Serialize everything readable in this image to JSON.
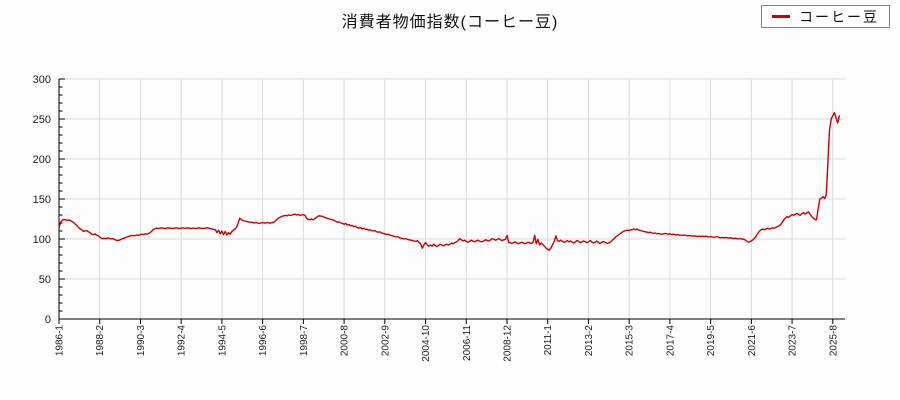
{
  "page": {
    "background": "#fdfdfd",
    "colors": {
      "line": "#cc0000",
      "grid": "#d9d9d9",
      "axis": "#000000",
      "legend_border": "#848484"
    }
  },
  "chart": {
    "title": "消費者物価指数(コーヒー豆)",
    "legend": {
      "label": "コーヒー豆"
    }
  },
  "chart_data": {
    "type": "line",
    "title": "消費者物価指数(コーヒー豆)",
    "series_name": "コーヒー豆",
    "line_color": "#cc0000",
    "grid": true,
    "legend_position": "top-right",
    "x_start": "1986-01",
    "x_frequency": "monthly",
    "x_tick_every_months": 25,
    "x_tick_labels": [
      "1986-1",
      "1988-2",
      "1990-3",
      "1992-4",
      "1994-5",
      "1996-6",
      "1998-7",
      "2000-8",
      "2002-9",
      "2004-10",
      "2006-11",
      "2008-12",
      "2011-1",
      "2013-2",
      "2015-3",
      "2017-4",
      "2019-5",
      "2021-6",
      "2023-7",
      "2025-8"
    ],
    "ylim": [
      0,
      300
    ],
    "y_ticks": [
      0,
      50,
      100,
      150,
      200,
      250,
      300
    ],
    "y_minor_step": 10,
    "values": [
      114,
      121,
      123.5,
      124.5,
      124,
      123.5,
      124,
      123,
      122,
      120.5,
      118.5,
      117,
      114.5,
      112.5,
      111.5,
      109.5,
      110,
      110.5,
      109,
      108,
      106,
      105.5,
      106.5,
      105,
      104,
      102.5,
      101,
      100.5,
      101,
      100.5,
      101.5,
      100.5,
      100,
      100.5,
      99.5,
      98.5,
      98,
      98.5,
      99.5,
      100.5,
      101,
      102,
      102.5,
      103.5,
      104,
      104.5,
      104,
      104.5,
      105,
      104.5,
      105.5,
      106,
      105.5,
      106.5,
      106,
      107,
      108,
      110,
      112,
      113,
      113.5,
      113,
      113.5,
      114,
      113.5,
      113,
      113.5,
      114,
      113.5,
      113.5,
      113,
      113.5,
      114,
      113.5,
      113,
      113.5,
      114,
      113.5,
      113.5,
      114,
      113.5,
      113,
      113.5,
      113.5,
      113,
      113.5,
      114,
      113.5,
      113,
      113.5,
      113.5,
      114,
      113.5,
      113,
      112.5,
      112,
      111.5,
      108,
      111,
      106.5,
      110,
      105.5,
      109.5,
      105,
      108,
      106,
      109,
      111,
      112,
      115,
      120,
      126,
      124,
      123,
      122.5,
      122,
      121.5,
      121,
      121,
      120.5,
      120,
      120.5,
      120,
      119.5,
      120,
      120.5,
      120,
      120,
      120.5,
      120,
      120,
      120.5,
      121,
      123,
      125,
      126.5,
      127.5,
      128.5,
      129,
      129.5,
      129,
      130,
      129.5,
      130,
      130.5,
      131,
      130,
      130.5,
      129.5,
      130,
      130.5,
      129.5,
      126,
      124.5,
      124,
      125,
      124,
      125.5,
      127,
      128.5,
      129,
      128.5,
      128,
      127,
      126.5,
      125.5,
      125,
      124.5,
      124,
      123,
      122,
      121,
      121.5,
      120,
      119.5,
      118.5,
      119.5,
      117.5,
      118,
      116.5,
      117,
      115.5,
      116,
      114.5,
      113.5,
      114.5,
      112.5,
      113.5,
      112,
      112.5,
      111,
      111.5,
      110.5,
      110,
      110.5,
      109,
      108.5,
      109,
      107.5,
      107,
      106.5,
      105.5,
      106,
      105,
      104.5,
      104,
      103,
      102.5,
      103,
      101.5,
      101,
      100.5,
      100,
      100.5,
      99.5,
      99,
      98.5,
      98,
      97.5,
      97,
      98,
      96,
      94,
      88.5,
      92.5,
      95.5,
      93,
      91,
      92.5,
      91,
      93.5,
      92,
      90.5,
      92,
      93.5,
      92.5,
      91.5,
      92.5,
      93.5,
      92.5,
      93.5,
      95,
      94,
      95.5,
      96.5,
      98,
      100.5,
      99,
      97.5,
      98.5,
      97,
      96,
      97,
      98.5,
      97.5,
      96.5,
      97.5,
      98.5,
      97.5,
      96.5,
      97,
      98,
      99,
      98,
      97.5,
      99,
      100.5,
      99.5,
      98.5,
      99.5,
      100.5,
      99,
      98,
      99,
      99.5,
      104.5,
      96,
      95.5,
      94.5,
      95.5,
      96.5,
      95,
      94,
      95,
      96,
      95,
      94,
      95,
      96,
      95,
      94.5,
      96,
      104.5,
      94,
      99.5,
      92.5,
      95,
      93,
      91,
      88.5,
      87,
      86,
      89,
      93,
      97,
      104,
      98,
      97,
      98.5,
      97,
      96,
      96.5,
      98,
      96.5,
      97.5,
      96,
      95,
      96.5,
      98,
      97,
      95.5,
      96.5,
      97.5,
      96.5,
      95.5,
      96.5,
      98,
      96.5,
      95,
      96,
      97.5,
      96,
      94.5,
      95.5,
      97,
      96,
      95,
      94.5,
      95.5,
      97,
      99,
      101,
      103,
      104.5,
      106,
      107.5,
      109,
      110,
      110.5,
      111,
      110.5,
      111.5,
      112,
      112.5,
      111.5,
      112.5,
      111,
      110.5,
      110,
      109.5,
      109,
      108.5,
      108,
      108.5,
      107.5,
      107,
      107.5,
      106.5,
      107,
      106.5,
      106,
      106.5,
      107,
      106.5,
      106,
      106.5,
      105.5,
      106,
      105.5,
      105,
      105.5,
      104.5,
      105,
      104.5,
      105,
      104.5,
      104,
      104.5,
      104,
      103.5,
      104,
      103.5,
      103,
      103.5,
      103,
      103.5,
      103,
      103.5,
      103,
      102.5,
      103,
      102.5,
      102,
      102.5,
      103,
      102,
      101.5,
      102,
      101.5,
      102,
      101.5,
      101,
      101.5,
      101,
      100.5,
      101,
      100.5,
      100,
      100.5,
      100,
      100,
      99,
      97.5,
      96,
      96.5,
      97.5,
      99,
      101,
      104,
      107,
      110,
      111.5,
      112.5,
      111.5,
      112.5,
      113.5,
      112.5,
      113,
      114,
      113.5,
      114.5,
      115.5,
      116.5,
      118,
      121,
      124,
      126.5,
      128,
      127,
      129,
      130.5,
      129.5,
      131,
      132,
      130.5,
      129.5,
      131.5,
      133,
      131,
      132.5,
      134,
      131,
      128.5,
      126,
      124.5,
      124,
      137,
      150,
      151,
      153,
      150.5,
      156,
      196,
      236,
      250,
      254,
      258,
      251,
      245,
      254
    ]
  }
}
